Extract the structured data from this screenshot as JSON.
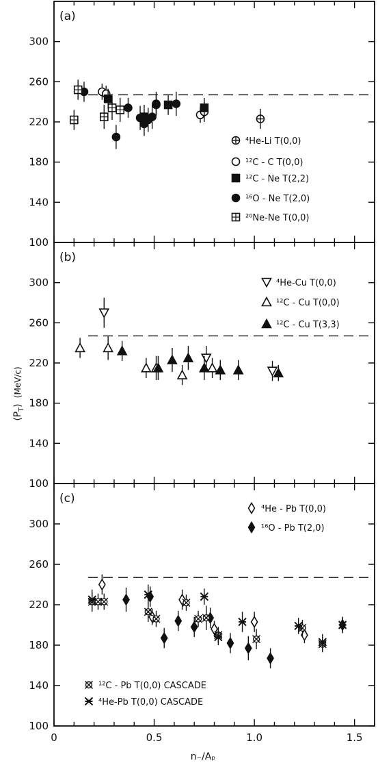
{
  "chart_data": [
    {
      "panel": "(a)",
      "type": "scatter",
      "xlim": [
        0,
        1.6
      ],
      "ylim": [
        100,
        340
      ],
      "yticks": [
        100,
        140,
        180,
        220,
        260,
        300
      ],
      "reference_y": 247,
      "legend_placement": "right",
      "series": [
        {
          "name": "⁴He-Li   T(0,0)",
          "marker": "circle-plus",
          "points": [
            [
              1.03,
              223,
              10
            ]
          ]
        },
        {
          "name": "¹²C - C    T(0,0)",
          "marker": "circle-open",
          "points": [
            [
              0.24,
              250,
              8
            ],
            [
              0.26,
              248,
              8
            ],
            [
              0.51,
              237,
              10
            ],
            [
              0.73,
              227,
              8
            ],
            [
              0.75,
              230,
              10
            ]
          ]
        },
        {
          "name": "¹²C - Ne  T(2,2)",
          "marker": "square-filled",
          "points": [
            [
              0.27,
              243,
              10
            ],
            [
              0.45,
              225,
              12
            ],
            [
              0.57,
              237,
              10
            ],
            [
              0.75,
              234,
              10
            ]
          ]
        },
        {
          "name": "¹⁶O - Ne  T(2,0)",
          "marker": "circle-filled",
          "points": [
            [
              0.15,
              250,
              10
            ],
            [
              0.31,
              205,
              12
            ],
            [
              0.37,
              234,
              10
            ],
            [
              0.43,
              224,
              12
            ],
            [
              0.45,
              218,
              12
            ],
            [
              0.47,
              222,
              12
            ],
            [
              0.49,
              225,
              12
            ],
            [
              0.51,
              238,
              12
            ],
            [
              0.61,
              238,
              12
            ]
          ]
        },
        {
          "name": "²⁰Ne-Ne  T(0,0)",
          "marker": "square-grid",
          "points": [
            [
              0.1,
              222,
              10
            ],
            [
              0.12,
              252,
              10
            ],
            [
              0.25,
              225,
              12
            ],
            [
              0.29,
              234,
              12
            ],
            [
              0.33,
              232,
              12
            ]
          ]
        }
      ]
    },
    {
      "panel": "(b)",
      "type": "scatter",
      "xlim": [
        0,
        1.6
      ],
      "ylim": [
        100,
        340
      ],
      "yticks": [
        100,
        140,
        180,
        220,
        260,
        300
      ],
      "reference_y": 247,
      "legend_placement": "top-right",
      "series": [
        {
          "name": "⁴He-Cu    T(0,0)",
          "marker": "triangle-down-open",
          "points": [
            [
              0.25,
              270,
              15
            ],
            [
              0.76,
              225,
              12
            ],
            [
              1.09,
              212,
              10
            ]
          ]
        },
        {
          "name": "¹²C - Cu   T(0,0)",
          "marker": "triangle-up-open",
          "points": [
            [
              0.13,
              235,
              10
            ],
            [
              0.27,
              235,
              12
            ],
            [
              0.46,
              215,
              10
            ],
            [
              0.51,
              215,
              12
            ],
            [
              0.64,
              208,
              10
            ],
            [
              0.79,
              215,
              10
            ]
          ]
        },
        {
          "name": "¹²C - Cu   T(3,3)",
          "marker": "triangle-up-filled",
          "points": [
            [
              0.34,
              232,
              10
            ],
            [
              0.52,
              215,
              12
            ],
            [
              0.59,
              223,
              12
            ],
            [
              0.67,
              225,
              12
            ],
            [
              0.75,
              215,
              12
            ],
            [
              0.83,
              213,
              10
            ],
            [
              0.92,
              213,
              10
            ],
            [
              1.12,
              210,
              8
            ]
          ]
        }
      ]
    },
    {
      "panel": "(c)",
      "type": "scatter",
      "xlim": [
        0,
        1.6
      ],
      "ylim": [
        100,
        340
      ],
      "yticks": [
        100,
        140,
        180,
        220,
        260,
        300
      ],
      "reference_y": 247,
      "xticks": [
        0,
        0.5,
        1.0,
        1.5
      ],
      "xlabel": "n₋/Aₚ",
      "legend_placement": "top-right and bottom-left",
      "series": [
        {
          "name": "⁴He - Pb    T(0,0)",
          "marker": "diamond-open",
          "points": [
            [
              0.24,
              240,
              10
            ],
            [
              0.49,
              208,
              8
            ],
            [
              0.64,
              225,
              10
            ],
            [
              0.8,
              196,
              8
            ],
            [
              1.0,
              203,
              10
            ],
            [
              1.25,
              190,
              8
            ]
          ]
        },
        {
          "name": "¹⁶O - Pb    T(2,0)",
          "marker": "diamond-filled",
          "points": [
            [
              0.36,
              225,
              12
            ],
            [
              0.48,
              228,
              10
            ],
            [
              0.55,
              187,
              10
            ],
            [
              0.62,
              204,
              10
            ],
            [
              0.7,
              198,
              10
            ],
            [
              0.78,
              207,
              10
            ],
            [
              0.88,
              182,
              10
            ],
            [
              0.97,
              177,
              12
            ],
            [
              1.08,
              167,
              10
            ],
            [
              1.44,
              200,
              8
            ]
          ]
        },
        {
          "name": "¹²C - Pb   T(0,0)   CASCADE",
          "marker": "cross-circle",
          "points": [
            [
              0.19,
              223,
              10
            ],
            [
              0.22,
              223,
              8
            ],
            [
              0.25,
              223,
              8
            ],
            [
              0.47,
              213,
              10
            ],
            [
              0.51,
              206,
              8
            ],
            [
              0.66,
              222,
              8
            ],
            [
              0.72,
              206,
              8
            ],
            [
              0.76,
              207,
              12
            ],
            [
              0.82,
              190,
              8
            ],
            [
              1.01,
              186,
              10
            ],
            [
              1.24,
              197,
              8
            ],
            [
              1.34,
              181,
              8
            ]
          ]
        },
        {
          "name": "⁴He-Pb   T(0,0)   CASCADE",
          "marker": "cross-star",
          "points": [
            [
              0.19,
              225,
              10
            ],
            [
              0.47,
              230,
              10
            ],
            [
              0.75,
              228,
              8
            ],
            [
              0.82,
              188,
              8
            ],
            [
              0.94,
              203,
              10
            ],
            [
              1.22,
              199,
              8
            ],
            [
              1.34,
              183,
              8
            ],
            [
              1.44,
              200,
              8
            ]
          ]
        }
      ]
    }
  ],
  "shared": {
    "ylabel": "⟨P",
    "ylabel_sub": "T",
    "ylabel_close": "⟩",
    "ylabel_units": "(MeV/c)",
    "xtick_labels": [
      "0",
      "0.5",
      "1.0",
      "1.5"
    ]
  },
  "colors": {
    "ink": "#111111",
    "background": "#ffffff"
  }
}
